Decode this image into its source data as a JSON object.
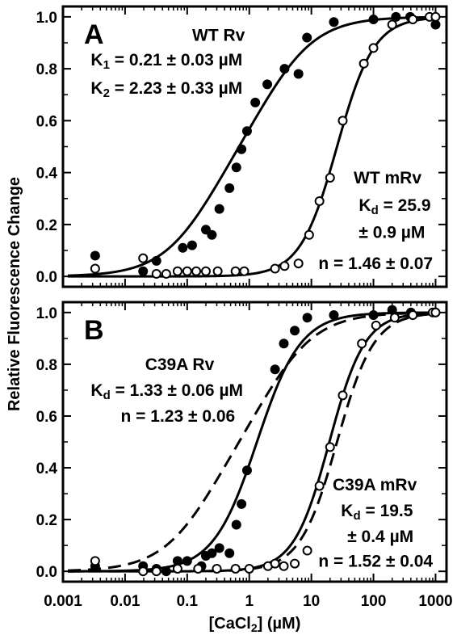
{
  "chart_data": [
    {
      "type": "scatter",
      "panel": "A",
      "xlabel_parts": [
        "[CaCl",
        "2",
        "] (µM)"
      ],
      "ylabel": "Relative Fluorescence Change",
      "x_scale": "log",
      "xlim": [
        0.001,
        1500
      ],
      "ylim": [
        -0.04,
        1.04
      ],
      "x_ticks": [
        {
          "v": 0.001,
          "label": "0.001"
        },
        {
          "v": 0.01,
          "label": "0.01"
        },
        {
          "v": 0.1,
          "label": "0.1"
        },
        {
          "v": 1,
          "label": "1"
        },
        {
          "v": 10,
          "label": "10"
        },
        {
          "v": 100,
          "label": "100"
        },
        {
          "v": 1000,
          "label": "1000"
        }
      ],
      "y_ticks": [
        {
          "v": 0,
          "label": "0.0"
        },
        {
          "v": 0.2,
          "label": "0.2"
        },
        {
          "v": 0.4,
          "label": "0.4"
        },
        {
          "v": 0.6,
          "label": "0.6"
        },
        {
          "v": 0.8,
          "label": "0.8"
        },
        {
          "v": 1.0,
          "label": "1.0"
        }
      ],
      "series": [
        {
          "name": "WT Rv",
          "marker": "filled",
          "points": [
            [
              0.0033,
              0.08
            ],
            [
              0.0195,
              0.02
            ],
            [
              0.032,
              0.06
            ],
            [
              0.085,
              0.11
            ],
            [
              0.12,
              0.12
            ],
            [
              0.2,
              0.18
            ],
            [
              0.25,
              0.16
            ],
            [
              0.33,
              0.26
            ],
            [
              0.48,
              0.34
            ],
            [
              0.62,
              0.42
            ],
            [
              0.75,
              0.49
            ],
            [
              0.92,
              0.56
            ],
            [
              1.25,
              0.67
            ],
            [
              1.95,
              0.74
            ],
            [
              3.7,
              0.8
            ],
            [
              6.2,
              0.78
            ],
            [
              8.5,
              0.92
            ],
            [
              23,
              0.98
            ],
            [
              100,
              0.99
            ],
            [
              230,
              1.0
            ],
            [
              390,
              1.0
            ],
            [
              1000,
              0.97
            ]
          ],
          "fit": {
            "model": "two-site",
            "K1": 0.21,
            "K2": 2.23,
            "w1": 0.5,
            "dash": false
          }
        },
        {
          "name": "WT mRv",
          "marker": "open",
          "points": [
            [
              0.0033,
              0.03
            ],
            [
              0.0195,
              0.07
            ],
            [
              0.032,
              0.01
            ],
            [
              0.046,
              0.01
            ],
            [
              0.07,
              0.02
            ],
            [
              0.1,
              0.02
            ],
            [
              0.14,
              0.02
            ],
            [
              0.2,
              0.02
            ],
            [
              0.31,
              0.02
            ],
            [
              0.6,
              0.02
            ],
            [
              0.83,
              0.02
            ],
            [
              2.6,
              0.03
            ],
            [
              3.7,
              0.04
            ],
            [
              6.2,
              0.05
            ],
            [
              9.2,
              0.16
            ],
            [
              13.5,
              0.29
            ],
            [
              20,
              0.38
            ],
            [
              32,
              0.6
            ],
            [
              70,
              0.82
            ],
            [
              100,
              0.88
            ],
            [
              200,
              0.97
            ],
            [
              430,
              0.99
            ],
            [
              800,
              1.0
            ],
            [
              1000,
              1.0
            ]
          ],
          "fit": {
            "model": "hill",
            "Kd": 25.9,
            "n": 1.46,
            "dash": false
          }
        }
      ],
      "annotations": [
        {
          "key": "wt_rv_title",
          "lines": [
            [
              {
                "t": "WT Rv"
              }
            ]
          ],
          "x": 0.32,
          "y": 0.93,
          "anchor": "middle"
        },
        {
          "key": "wt_rv_k1",
          "lines": [
            [
              {
                "t": "K"
              },
              {
                "t": "1",
                "sub": true
              },
              {
                "t": " = 0.21 ± 0.03 µM"
              }
            ]
          ],
          "x": 0.0028,
          "y": 0.835,
          "anchor": "start"
        },
        {
          "key": "wt_rv_k2",
          "lines": [
            [
              {
                "t": "K"
              },
              {
                "t": "2",
                "sub": true
              },
              {
                "t": " = 2.23 ± 0.33 µM"
              }
            ]
          ],
          "x": 0.0028,
          "y": 0.725,
          "anchor": "start"
        },
        {
          "key": "wt_mrv_title",
          "lines": [
            [
              {
                "t": "WT mRv"
              }
            ]
          ],
          "x": 48,
          "y": 0.38,
          "anchor": "start"
        },
        {
          "key": "wt_mrv_kd",
          "lines": [
            [
              {
                "t": "K"
              },
              {
                "t": "d",
                "sub": true
              },
              {
                "t": " = 25.9"
              }
            ]
          ],
          "x": 58,
          "y": 0.275,
          "anchor": "start"
        },
        {
          "key": "wt_mrv_kd_err",
          "lines": [
            [
              {
                "t": "± 0.9 µM"
              }
            ]
          ],
          "x": 58,
          "y": 0.17,
          "anchor": "start"
        },
        {
          "key": "wt_mrv_n",
          "lines": [
            [
              {
                "t": "n = 1.46 ± 0.07"
              }
            ]
          ],
          "x": 13,
          "y": 0.05,
          "anchor": "start"
        }
      ]
    },
    {
      "type": "scatter",
      "panel": "B",
      "xlabel_parts": [
        "[CaCl",
        "2",
        "] (µM)"
      ],
      "ylabel": "Relative Fluorescence Change",
      "x_scale": "log",
      "xlim": [
        0.001,
        1500
      ],
      "ylim": [
        -0.04,
        1.04
      ],
      "x_ticks": [
        {
          "v": 0.001,
          "label": "0.001"
        },
        {
          "v": 0.01,
          "label": "0.01"
        },
        {
          "v": 0.1,
          "label": "0.1"
        },
        {
          "v": 1,
          "label": "1"
        },
        {
          "v": 10,
          "label": "10"
        },
        {
          "v": 100,
          "label": "100"
        },
        {
          "v": 1000,
          "label": "1000"
        }
      ],
      "y_ticks": [
        {
          "v": 0,
          "label": "0.0"
        },
        {
          "v": 0.2,
          "label": "0.2"
        },
        {
          "v": 0.4,
          "label": "0.4"
        },
        {
          "v": 0.6,
          "label": "0.6"
        },
        {
          "v": 0.8,
          "label": "0.8"
        },
        {
          "v": 1.0,
          "label": "1.0"
        }
      ],
      "series": [
        {
          "name": "C39A Rv",
          "marker": "filled",
          "points": [
            [
              0.0033,
              0.02
            ],
            [
              0.0195,
              0.02
            ],
            [
              0.032,
              0.01
            ],
            [
              0.046,
              0.0
            ],
            [
              0.07,
              0.04
            ],
            [
              0.1,
              0.04
            ],
            [
              0.17,
              0.02
            ],
            [
              0.2,
              0.06
            ],
            [
              0.25,
              0.07
            ],
            [
              0.33,
              0.09
            ],
            [
              0.48,
              0.07
            ],
            [
              0.62,
              0.18
            ],
            [
              0.75,
              0.26
            ],
            [
              0.92,
              0.39
            ],
            [
              2.6,
              0.78
            ],
            [
              3.6,
              0.88
            ],
            [
              5.4,
              0.93
            ],
            [
              8.6,
              0.98
            ],
            [
              23,
              0.99
            ],
            [
              100,
              0.99
            ],
            [
              200,
              1.01
            ],
            [
              400,
              1.0
            ],
            [
              1000,
              1.0
            ]
          ],
          "fit": {
            "model": "hill",
            "Kd": 1.33,
            "n": 1.23,
            "dash": false
          }
        },
        {
          "name": "C39A Rv reference",
          "marker": "none",
          "points": [],
          "fit": {
            "model": "two-site",
            "K1": 0.21,
            "K2": 2.23,
            "w1": 0.5,
            "dash": true
          }
        },
        {
          "name": "C39A mRv",
          "marker": "open",
          "points": [
            [
              0.0033,
              0.04
            ],
            [
              0.0195,
              0.0
            ],
            [
              0.032,
              0.0
            ],
            [
              0.07,
              0.01
            ],
            [
              0.15,
              0.01
            ],
            [
              0.3,
              0.01
            ],
            [
              0.6,
              0.01
            ],
            [
              1.0,
              0.01
            ],
            [
              2.0,
              0.02
            ],
            [
              2.6,
              0.03
            ],
            [
              3.6,
              0.02
            ],
            [
              5.4,
              0.03
            ],
            [
              8.6,
              0.08
            ],
            [
              13.5,
              0.33
            ],
            [
              20,
              0.48
            ],
            [
              32,
              0.68
            ],
            [
              65,
              0.88
            ],
            [
              110,
              0.95
            ],
            [
              220,
              0.98
            ],
            [
              430,
              0.99
            ],
            [
              900,
              1.0
            ],
            [
              1000,
              1.0
            ]
          ],
          "fit": {
            "model": "hill",
            "Kd": 19.5,
            "n": 1.52,
            "dash": false
          }
        },
        {
          "name": "C39A mRv reference",
          "marker": "none",
          "points": [],
          "fit": {
            "model": "hill",
            "Kd": 25.9,
            "n": 1.46,
            "dash": true
          }
        }
      ],
      "annotations": [
        {
          "key": "c39a_rv_title",
          "lines": [
            [
              {
                "t": "C39A Rv"
              }
            ]
          ],
          "x": 0.021,
          "y": 0.8,
          "anchor": "start"
        },
        {
          "key": "c39a_rv_kd",
          "lines": [
            [
              {
                "t": "K"
              },
              {
                "t": "d",
                "sub": true
              },
              {
                "t": " = 1.33 ± 0.06 µM"
              }
            ]
          ],
          "x": 0.0028,
          "y": 0.7,
          "anchor": "start"
        },
        {
          "key": "c39a_rv_n",
          "lines": [
            [
              {
                "t": "n = 1.23 ± 0.06"
              }
            ]
          ],
          "x": 0.0085,
          "y": 0.6,
          "anchor": "start"
        },
        {
          "key": "c39a_mrv_title",
          "lines": [
            [
              {
                "t": "C39A mRv"
              }
            ]
          ],
          "x": 22,
          "y": 0.335,
          "anchor": "start"
        },
        {
          "key": "c39a_mrv_kd",
          "lines": [
            [
              {
                "t": "K"
              },
              {
                "t": "d",
                "sub": true
              },
              {
                "t": " = 19.5"
              }
            ]
          ],
          "x": 30,
          "y": 0.235,
          "anchor": "start"
        },
        {
          "key": "c39a_mrv_kd_err",
          "lines": [
            [
              {
                "t": "± 0.4 µM"
              }
            ]
          ],
          "x": 38,
          "y": 0.135,
          "anchor": "start"
        },
        {
          "key": "c39a_mrv_n",
          "lines": [
            [
              {
                "t": "n = 1.52 ± 0.04"
              }
            ]
          ],
          "x": 13,
          "y": 0.04,
          "anchor": "start"
        }
      ]
    }
  ]
}
